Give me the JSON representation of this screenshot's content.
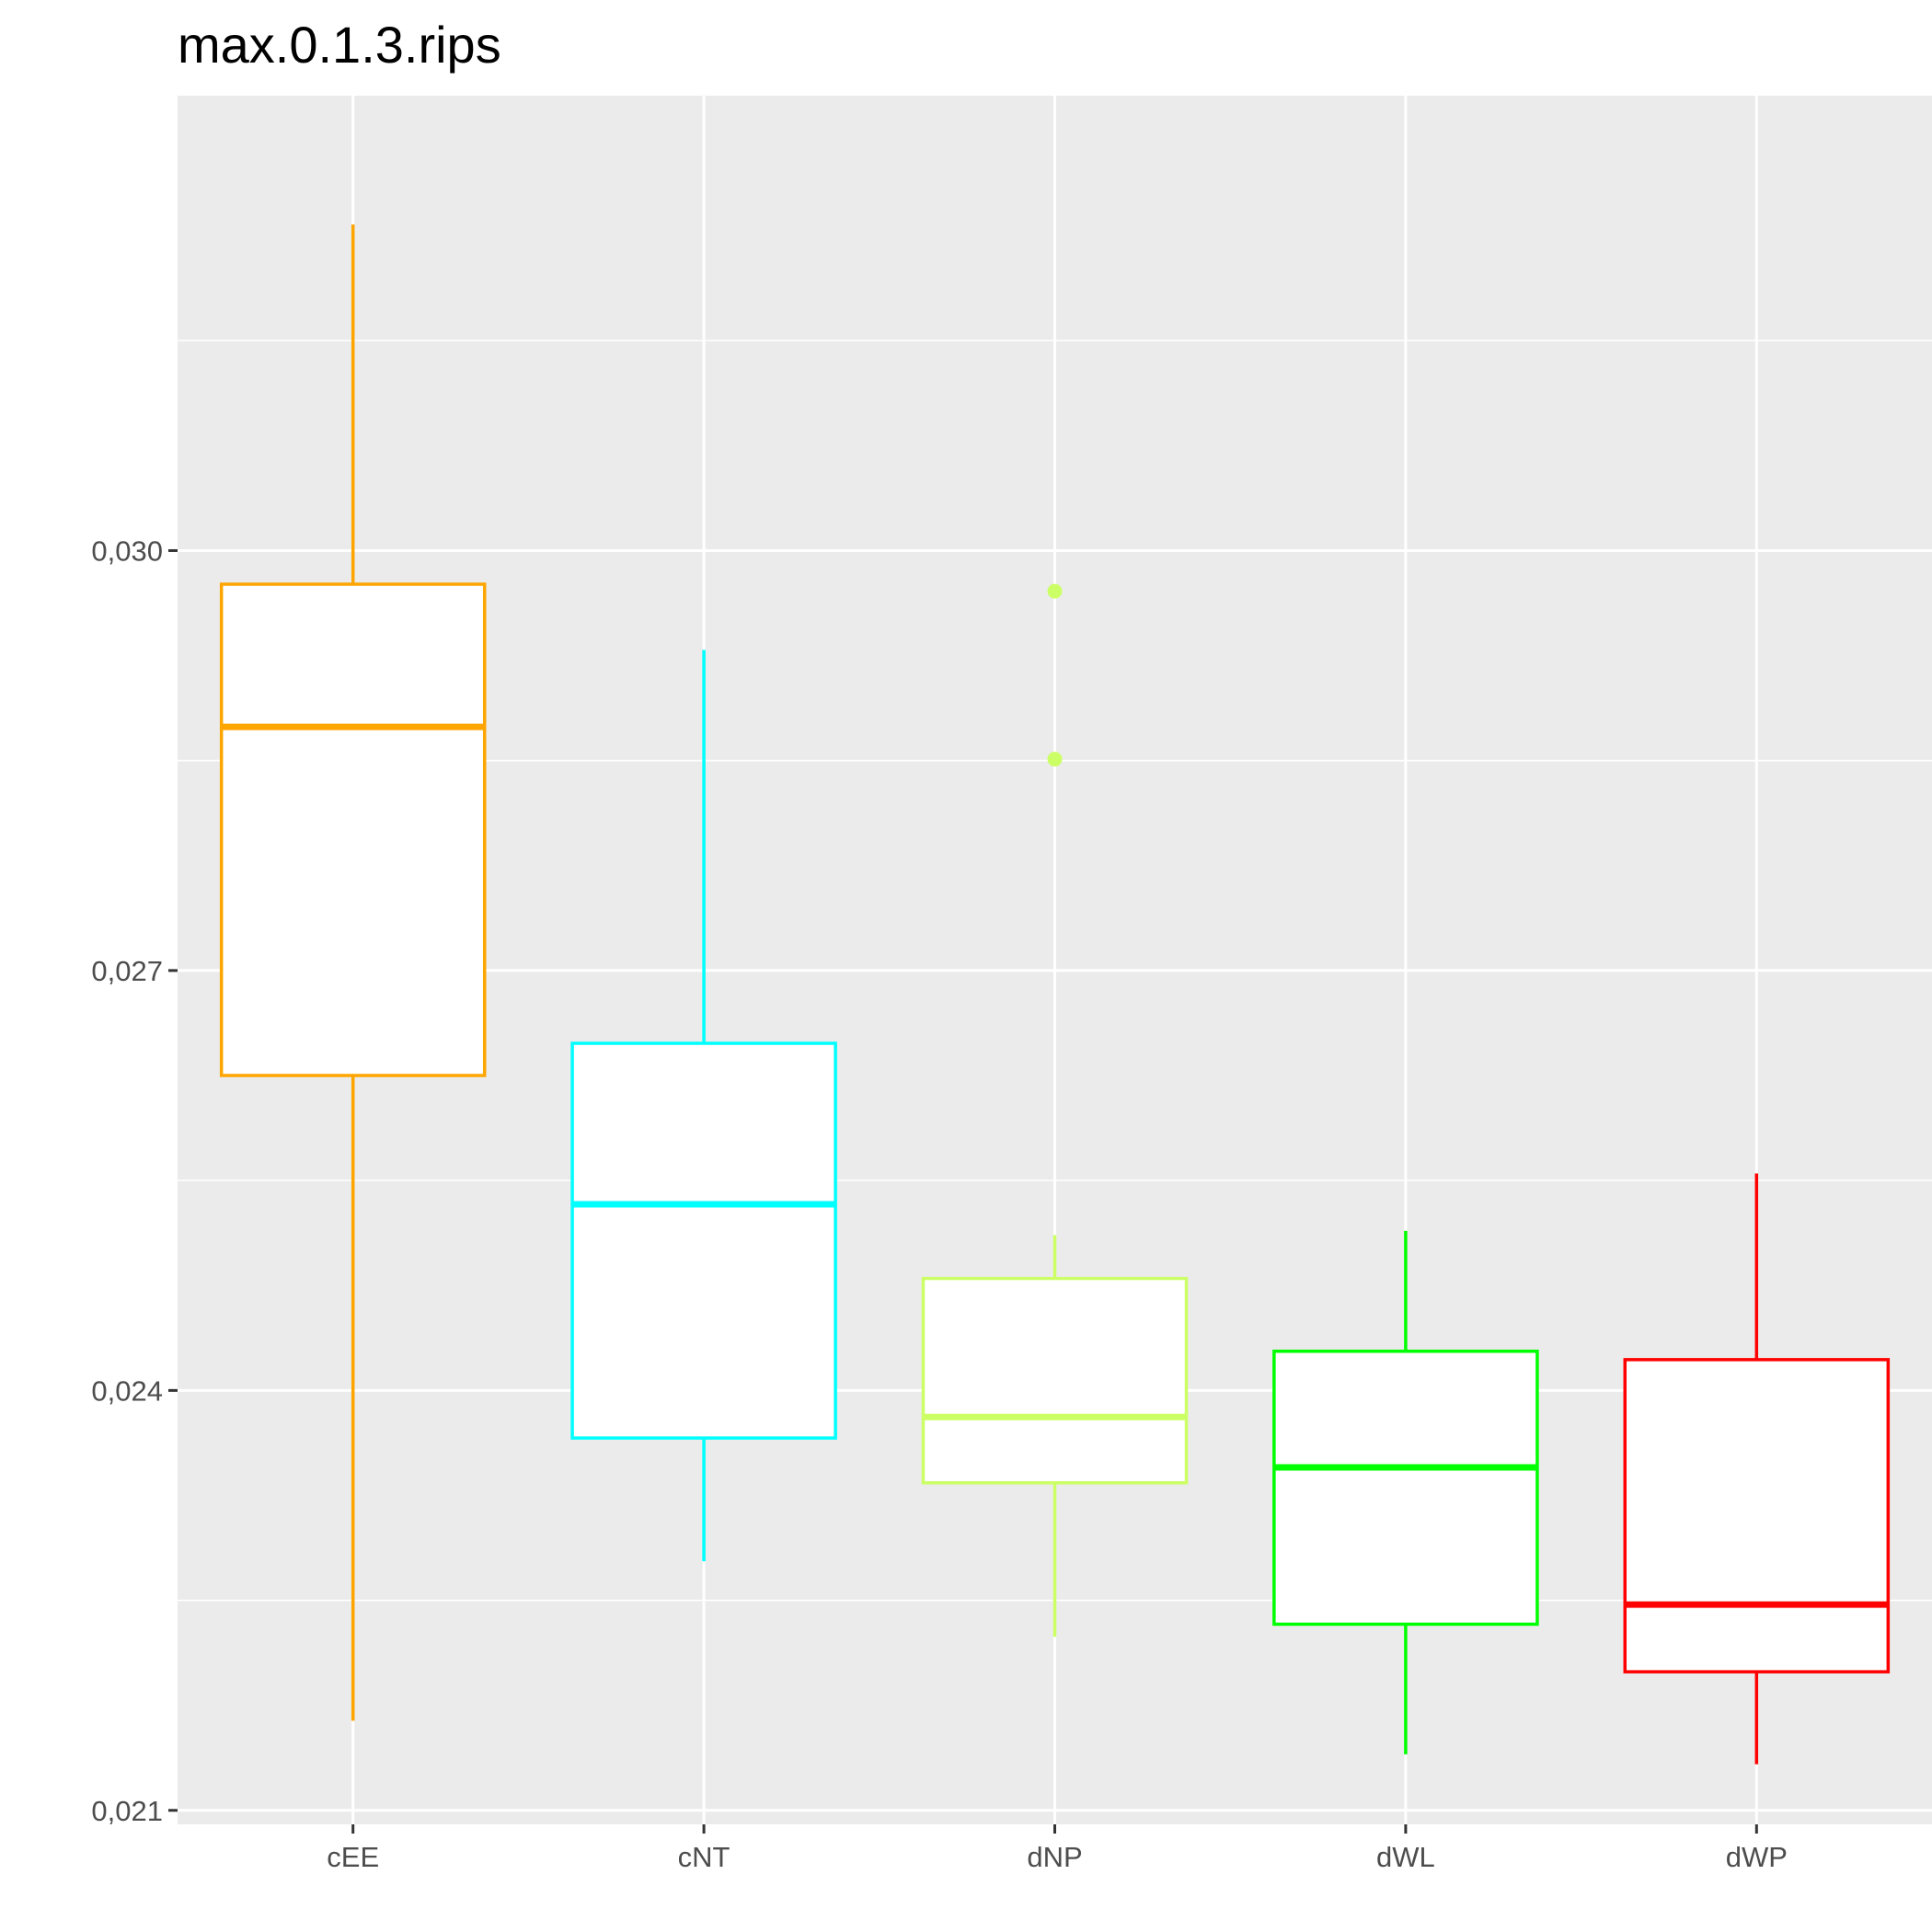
{
  "chart_data": {
    "type": "boxplot",
    "title": "max.0.1.3.rips",
    "xlabel": "",
    "ylabel": "",
    "ylim": [
      0.0209,
      0.03325
    ],
    "y_ticks": [
      {
        "value": 0.021,
        "label": "0,021"
      },
      {
        "value": 0.024,
        "label": "0,024"
      },
      {
        "value": 0.027,
        "label": "0,027"
      },
      {
        "value": 0.03,
        "label": "0,030"
      }
    ],
    "y_minor_ticks": [
      0.0225,
      0.0255,
      0.0285,
      0.0315
    ],
    "grid": true,
    "legend": "none",
    "panel_background": "#ebebeb",
    "categories": [
      "cEE",
      "cNT",
      "dNP",
      "dWL",
      "dWP"
    ],
    "series": [
      {
        "category": "cEE",
        "color": "#FFA500",
        "whisker_low": 0.02164,
        "q1": 0.02625,
        "median": 0.02874,
        "q3": 0.02976,
        "whisker_high": 0.03233,
        "outliers": []
      },
      {
        "category": "cNT",
        "color": "#00FFFF",
        "whisker_low": 0.02278,
        "q1": 0.02366,
        "median": 0.02533,
        "q3": 0.02648,
        "whisker_high": 0.02929,
        "outliers": []
      },
      {
        "category": "dNP",
        "color": "#CCFF66",
        "whisker_low": 0.02224,
        "q1": 0.02334,
        "median": 0.02381,
        "q3": 0.0248,
        "whisker_high": 0.02511,
        "outliers": [
          0.02971,
          0.02851
        ]
      },
      {
        "category": "dWL",
        "color": "#00FF00",
        "whisker_low": 0.0214,
        "q1": 0.02233,
        "median": 0.02345,
        "q3": 0.02428,
        "whisker_high": 0.02514,
        "outliers": []
      },
      {
        "category": "dWP",
        "color": "#FF0000",
        "whisker_low": 0.02133,
        "q1": 0.02199,
        "median": 0.02247,
        "q3": 0.02422,
        "whisker_high": 0.02555,
        "outliers": []
      }
    ]
  }
}
